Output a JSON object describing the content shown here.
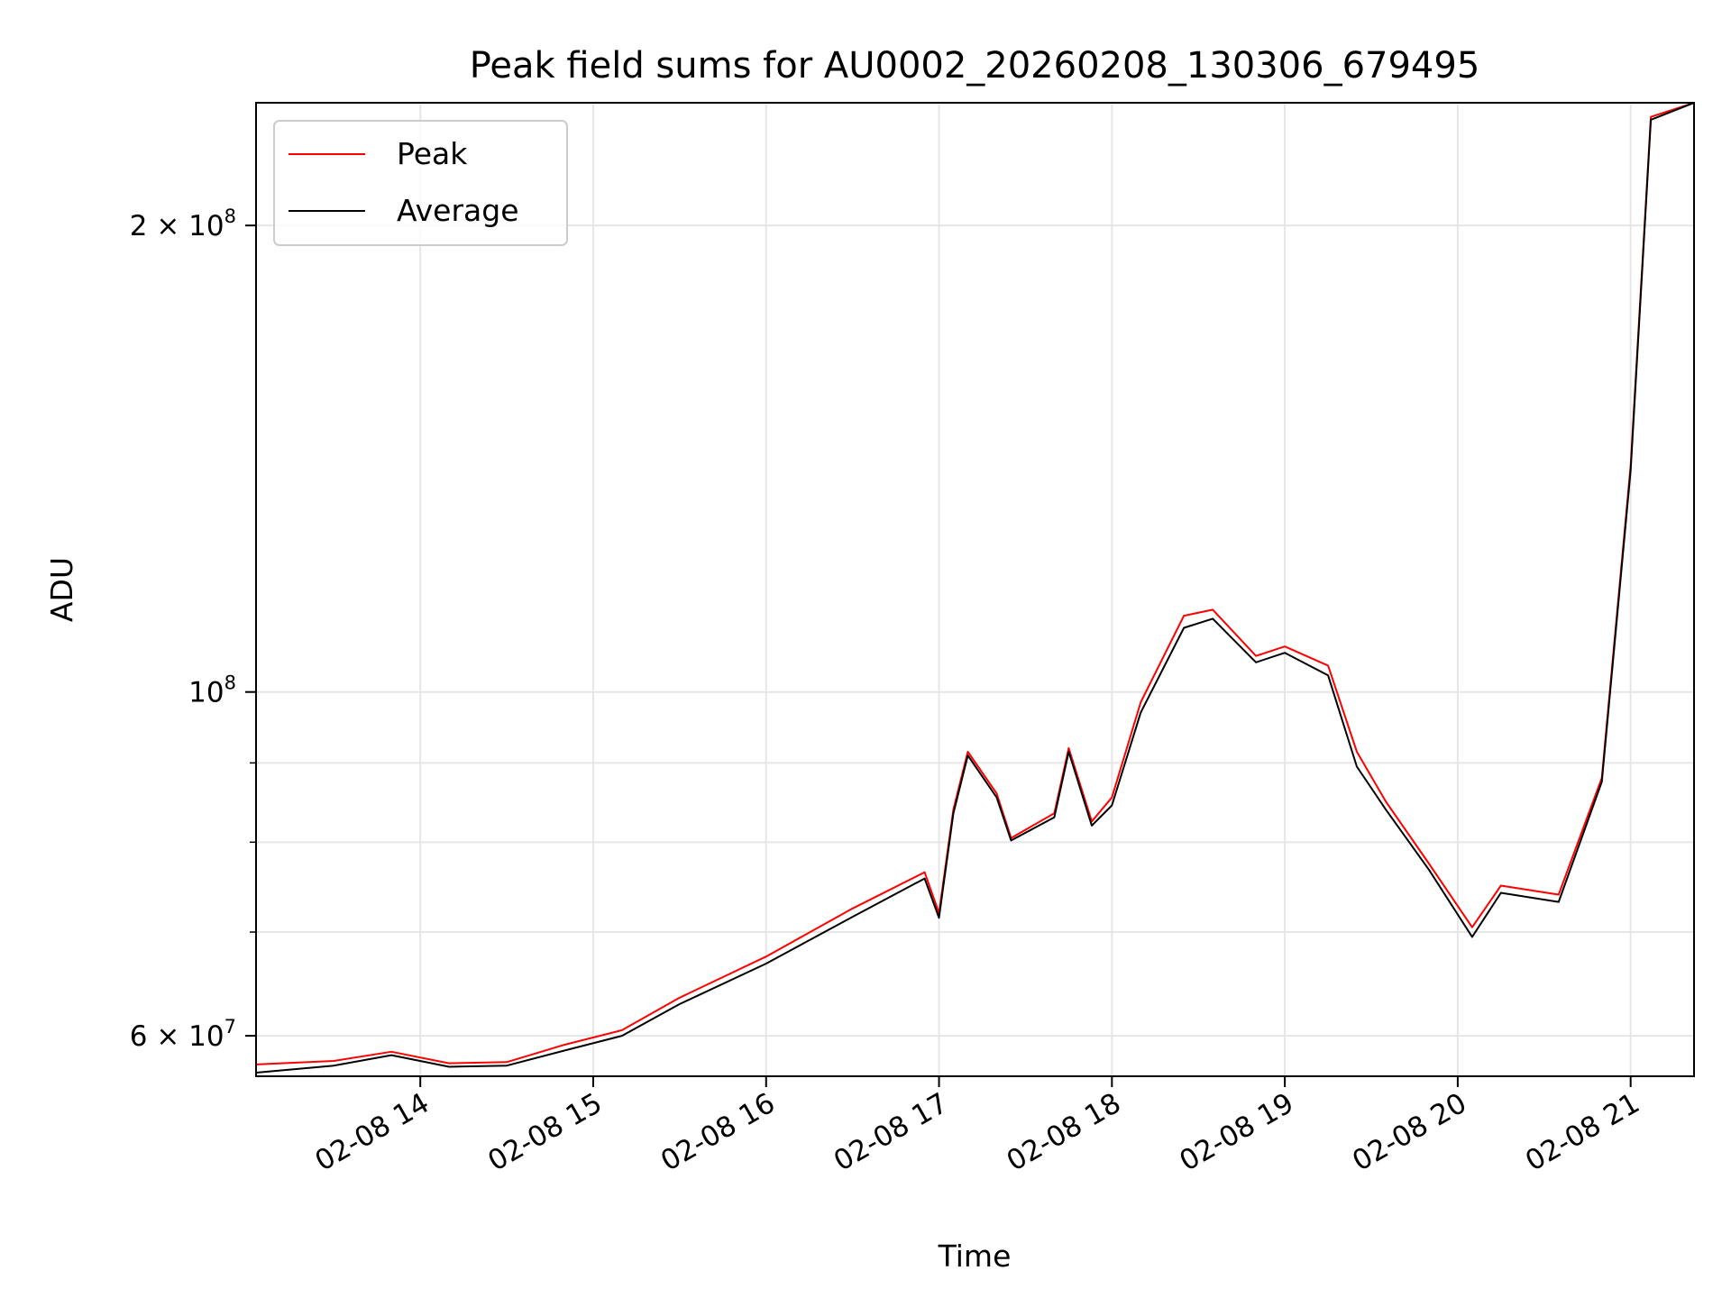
{
  "chart_data": {
    "type": "line",
    "title": "Peak field sums for AU0002_20260208_130306_679495",
    "xlabel": "Time",
    "ylabel": "ADU",
    "x_axis": {
      "type": "time",
      "start": "2026-02-08 13:03",
      "end": "2026-02-08 21:22",
      "ticks": [
        {
          "value": "2026-02-08 14:00",
          "label": "02-08 14"
        },
        {
          "value": "2026-02-08 15:00",
          "label": "02-08 15"
        },
        {
          "value": "2026-02-08 16:00",
          "label": "02-08 16"
        },
        {
          "value": "2026-02-08 17:00",
          "label": "02-08 17"
        },
        {
          "value": "2026-02-08 18:00",
          "label": "02-08 18"
        },
        {
          "value": "2026-02-08 19:00",
          "label": "02-08 19"
        },
        {
          "value": "2026-02-08 20:00",
          "label": "02-08 20"
        },
        {
          "value": "2026-02-08 21:00",
          "label": "02-08 21"
        }
      ]
    },
    "y_axis": {
      "scale": "log",
      "range": [
        56500000,
        240000000
      ],
      "major_ticks": [
        {
          "value": 60000000,
          "label": "6 × 10",
          "exp": "7"
        },
        {
          "value": 100000000,
          "label": "10",
          "exp": "8"
        },
        {
          "value": 200000000,
          "label": "2 × 10",
          "exp": "8"
        }
      ],
      "minor_ticks": [
        70000000,
        80000000,
        90000000
      ]
    },
    "grid": true,
    "legend": {
      "placement": "top-left"
    },
    "series": [
      {
        "name": "Peak",
        "color": "#ff0000",
        "points": [
          [
            "2026-02-08 13:03",
            57500000
          ],
          [
            "2026-02-08 13:30",
            57800000
          ],
          [
            "2026-02-08 13:50",
            58600000
          ],
          [
            "2026-02-08 14:10",
            57600000
          ],
          [
            "2026-02-08 14:30",
            57700000
          ],
          [
            "2026-02-08 14:50",
            59200000
          ],
          [
            "2026-02-08 15:10",
            60500000
          ],
          [
            "2026-02-08 15:30",
            63500000
          ],
          [
            "2026-02-08 16:00",
            67500000
          ],
          [
            "2026-02-08 16:30",
            72500000
          ],
          [
            "2026-02-08 16:55",
            76500000
          ],
          [
            "2026-02-08 17:00",
            72000000
          ],
          [
            "2026-02-08 17:05",
            84000000
          ],
          [
            "2026-02-08 17:10",
            91500000
          ],
          [
            "2026-02-08 17:20",
            86000000
          ],
          [
            "2026-02-08 17:25",
            80500000
          ],
          [
            "2026-02-08 17:40",
            83500000
          ],
          [
            "2026-02-08 17:45",
            92000000
          ],
          [
            "2026-02-08 17:53",
            82500000
          ],
          [
            "2026-02-08 18:00",
            85500000
          ],
          [
            "2026-02-08 18:10",
            98500000
          ],
          [
            "2026-02-08 18:25",
            112000000
          ],
          [
            "2026-02-08 18:35",
            113000000
          ],
          [
            "2026-02-08 18:50",
            105500000
          ],
          [
            "2026-02-08 19:00",
            107000000
          ],
          [
            "2026-02-08 19:15",
            104000000
          ],
          [
            "2026-02-08 19:25",
            91500000
          ],
          [
            "2026-02-08 19:35",
            85000000
          ],
          [
            "2026-02-08 19:50",
            77500000
          ],
          [
            "2026-02-08 20:05",
            70500000
          ],
          [
            "2026-02-08 20:15",
            75000000
          ],
          [
            "2026-02-08 20:35",
            74000000
          ],
          [
            "2026-02-08 20:50",
            88000000
          ],
          [
            "2026-02-08 21:00",
            140000000
          ],
          [
            "2026-02-08 21:07",
            235000000
          ],
          [
            "2026-02-08 21:22",
            240000000
          ]
        ]
      },
      {
        "name": "Average",
        "color": "#000000",
        "points": [
          [
            "2026-02-08 13:03",
            56800000
          ],
          [
            "2026-02-08 13:30",
            57400000
          ],
          [
            "2026-02-08 13:50",
            58300000
          ],
          [
            "2026-02-08 14:10",
            57300000
          ],
          [
            "2026-02-08 14:30",
            57400000
          ],
          [
            "2026-02-08 14:50",
            58700000
          ],
          [
            "2026-02-08 15:10",
            60000000
          ],
          [
            "2026-02-08 15:30",
            62900000
          ],
          [
            "2026-02-08 16:00",
            66800000
          ],
          [
            "2026-02-08 16:30",
            71600000
          ],
          [
            "2026-02-08 16:55",
            75800000
          ],
          [
            "2026-02-08 17:00",
            71500000
          ],
          [
            "2026-02-08 17:05",
            83500000
          ],
          [
            "2026-02-08 17:10",
            91000000
          ],
          [
            "2026-02-08 17:20",
            85500000
          ],
          [
            "2026-02-08 17:25",
            80200000
          ],
          [
            "2026-02-08 17:40",
            83000000
          ],
          [
            "2026-02-08 17:45",
            91500000
          ],
          [
            "2026-02-08 17:53",
            82000000
          ],
          [
            "2026-02-08 18:00",
            84500000
          ],
          [
            "2026-02-08 18:10",
            97000000
          ],
          [
            "2026-02-08 18:25",
            110000000
          ],
          [
            "2026-02-08 18:35",
            111500000
          ],
          [
            "2026-02-08 18:50",
            104500000
          ],
          [
            "2026-02-08 19:00",
            106000000
          ],
          [
            "2026-02-08 19:15",
            102500000
          ],
          [
            "2026-02-08 19:25",
            89500000
          ],
          [
            "2026-02-08 19:35",
            84000000
          ],
          [
            "2026-02-08 19:50",
            76800000
          ],
          [
            "2026-02-08 20:05",
            69500000
          ],
          [
            "2026-02-08 20:15",
            74200000
          ],
          [
            "2026-02-08 20:35",
            73200000
          ],
          [
            "2026-02-08 20:50",
            87500000
          ],
          [
            "2026-02-08 21:00",
            139000000
          ],
          [
            "2026-02-08 21:07",
            234000000
          ],
          [
            "2026-02-08 21:22",
            240000000
          ]
        ]
      }
    ]
  }
}
